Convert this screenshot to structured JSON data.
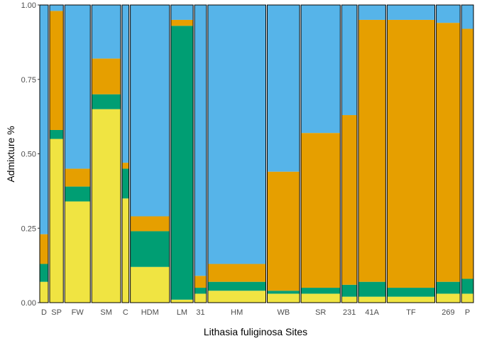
{
  "chart_data": {
    "type": "bar",
    "subtype": "stacked-admixture",
    "xlabel": "Lithasia fuliginosa Sites",
    "ylabel": "Admixture %",
    "ylim": [
      0,
      1
    ],
    "yticks": [
      0.0,
      0.25,
      0.5,
      0.75,
      1.0
    ],
    "ytick_labels": [
      "0.00",
      "0.25",
      "0.50",
      "0.75",
      "1.00"
    ],
    "grid": false,
    "stack_order": [
      "yellow",
      "green",
      "orange",
      "blue"
    ],
    "colors": {
      "yellow": "#F0E442",
      "green": "#009E73",
      "orange": "#E69F00",
      "blue": "#56B4E9",
      "border": "#000000"
    },
    "sites": [
      {
        "label": "D",
        "n": 5,
        "yellow": 0.07,
        "green": 0.06,
        "orange": 0.1,
        "blue": 0.77
      },
      {
        "label": "SP",
        "n": 8,
        "yellow": 0.55,
        "green": 0.03,
        "orange": 0.4,
        "blue": 0.02
      },
      {
        "label": "FW",
        "n": 15,
        "yellow": 0.34,
        "green": 0.05,
        "orange": 0.06,
        "blue": 0.55
      },
      {
        "label": "SM",
        "n": 17,
        "yellow": 0.65,
        "green": 0.05,
        "orange": 0.12,
        "blue": 0.18
      },
      {
        "label": "C",
        "n": 4,
        "yellow": 0.35,
        "green": 0.1,
        "orange": 0.02,
        "blue": 0.53
      },
      {
        "label": "HDM",
        "n": 23,
        "yellow": 0.12,
        "green": 0.12,
        "orange": 0.05,
        "blue": 0.71
      },
      {
        "label": "LM",
        "n": 13,
        "yellow": 0.01,
        "green": 0.92,
        "orange": 0.02,
        "blue": 0.05
      },
      {
        "label": "31",
        "n": 7,
        "yellow": 0.03,
        "green": 0.02,
        "orange": 0.04,
        "blue": 0.91
      },
      {
        "label": "HM",
        "n": 34,
        "yellow": 0.04,
        "green": 0.03,
        "orange": 0.06,
        "blue": 0.87
      },
      {
        "label": "WB",
        "n": 19,
        "yellow": 0.03,
        "green": 0.01,
        "orange": 0.4,
        "blue": 0.56
      },
      {
        "label": "SR",
        "n": 23,
        "yellow": 0.03,
        "green": 0.02,
        "orange": 0.52,
        "blue": 0.43
      },
      {
        "label": "231",
        "n": 9,
        "yellow": 0.02,
        "green": 0.04,
        "orange": 0.57,
        "blue": 0.37
      },
      {
        "label": "41A",
        "n": 16,
        "yellow": 0.02,
        "green": 0.05,
        "orange": 0.88,
        "blue": 0.05
      },
      {
        "label": "TF",
        "n": 28,
        "yellow": 0.02,
        "green": 0.03,
        "orange": 0.9,
        "blue": 0.05
      },
      {
        "label": "269",
        "n": 14,
        "yellow": 0.03,
        "green": 0.04,
        "orange": 0.87,
        "blue": 0.06
      },
      {
        "label": "P",
        "n": 7,
        "yellow": 0.03,
        "green": 0.05,
        "orange": 0.84,
        "blue": 0.08
      }
    ]
  }
}
